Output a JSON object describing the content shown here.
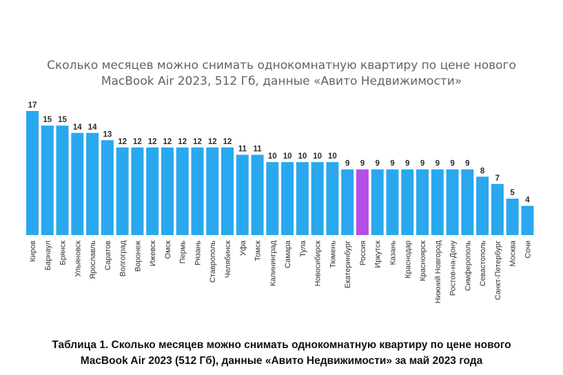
{
  "chart_data": {
    "type": "bar",
    "title_lines": [
      "Сколько месяцев можно снимать однокомнатную квартиру по цене нового",
      "MacBook Air 2023, 512 Гб, данные «Авито Недвижимости»"
    ],
    "categories": [
      "Киров",
      "Барнаул",
      "Брянск",
      "Ульяновск",
      "Ярославль",
      "Саратов",
      "Волгоград",
      "Воронеж",
      "Ижевск",
      "Омск",
      "Пермь",
      "Рязань",
      "Ставрополь",
      "Челябинск",
      "Уфа",
      "Томск",
      "Калининград",
      "Самара",
      "Тула",
      "Новосибирск",
      "Тюмень",
      "Екатеринбург",
      "Россия",
      "Иркутск",
      "Казань",
      "Краснодар",
      "Красноярск",
      "Нижний Новгород",
      "Ростов-на-Дону",
      "Симферополь",
      "Севастополь",
      "Санкт-Петербург",
      "Москва",
      "Сочи"
    ],
    "values": [
      17,
      15,
      15,
      14,
      14,
      13,
      12,
      12,
      12,
      12,
      12,
      12,
      12,
      12,
      11,
      11,
      10,
      10,
      10,
      10,
      10,
      9,
      9,
      9,
      9,
      9,
      9,
      9,
      9,
      9,
      8,
      7,
      5,
      4
    ],
    "highlight_category": "Россия",
    "colors": {
      "bar": "#29a8f0",
      "highlight": "#b44ee8"
    },
    "xlabel": "",
    "ylabel": "",
    "ylim": [
      0,
      17
    ]
  },
  "caption_lines": [
    "Таблица 1. Сколько месяцев можно снимать однокомнатную квартиру по цене нового",
    "MacBook Air 2023 (512 Гб), данные «Авито Недвижимости» за май 2023 года"
  ]
}
